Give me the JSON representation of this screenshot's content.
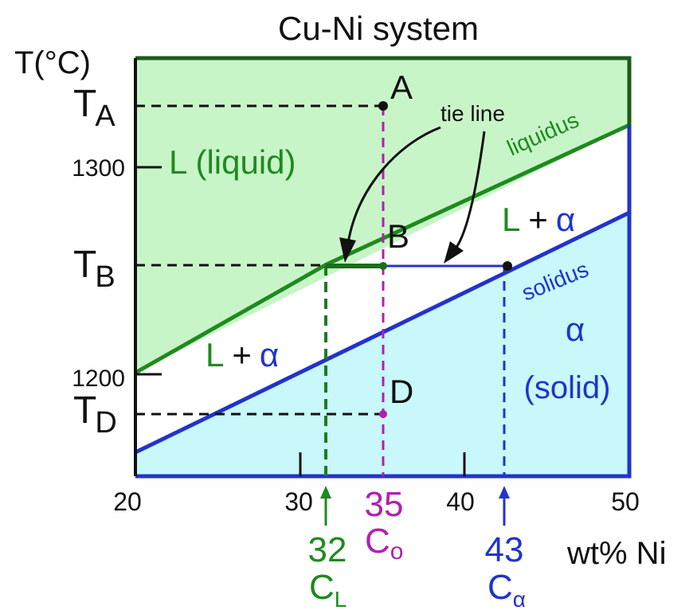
{
  "title": "Cu-Ni system",
  "axis": {
    "y_label": "T(°C)",
    "x_label": "wt% Ni",
    "x_ticks": [
      "20",
      "30",
      "40",
      "50"
    ],
    "y_ticks": [
      "1300",
      "1200"
    ]
  },
  "temperatures": {
    "ta": {
      "main": "T",
      "sub": "A"
    },
    "tb": {
      "main": "T",
      "sub": "B"
    },
    "td": {
      "main": "T",
      "sub": "D"
    }
  },
  "regions": {
    "liquid": "L (liquid)",
    "upper_two_phase": {
      "l": "L",
      "plus": "+",
      "alpha": "α"
    },
    "lower_two_phase": {
      "l": "L",
      "plus": "+",
      "alpha": "α"
    },
    "solid_alpha": "α",
    "solid_text": "(solid)"
  },
  "lines": {
    "liquidus": "liquidus",
    "solidus": "solidus",
    "tie_line": "tie line"
  },
  "points": {
    "a": "A",
    "b": "B",
    "d": "D"
  },
  "compositions": {
    "cl": {
      "value": "32",
      "main": "C",
      "sub": "L"
    },
    "co": {
      "value": "35",
      "main": "C",
      "sub": "o"
    },
    "ca": {
      "value": "43",
      "main": "C",
      "sub": "α"
    }
  },
  "colors": {
    "liquid_fill": "#c8f5c8",
    "solid_fill": "#c8f8fa",
    "green": "#1f8a1f",
    "blue": "#2233cc",
    "purple": "#b020b0",
    "frame": "#1a5c1a"
  }
}
